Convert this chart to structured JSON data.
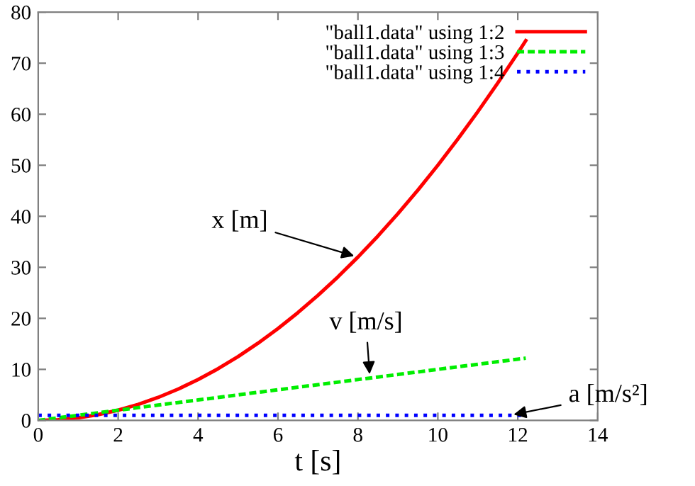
{
  "chart_data": {
    "type": "line",
    "xlabel": "t [s]",
    "xlim": [
      0,
      14
    ],
    "ylim": [
      0,
      80
    ],
    "xticks": [
      0,
      2,
      4,
      6,
      8,
      10,
      12,
      14
    ],
    "yticks": [
      0,
      10,
      20,
      30,
      40,
      50,
      60,
      70,
      80
    ],
    "grid": false,
    "legend": "top right",
    "x": [
      0,
      0.5,
      1,
      1.5,
      2,
      2.5,
      3,
      3.5,
      4,
      4.5,
      5,
      5.5,
      6,
      6.5,
      7,
      7.5,
      8,
      8.5,
      9,
      9.5,
      10,
      10.5,
      11,
      11.5,
      12,
      12.2
    ],
    "series": [
      {
        "name": "\"ball1.data\" using 1:2",
        "color": "#ff0000",
        "line_style": "solid",
        "values": [
          0,
          0.125,
          0.5,
          1.125,
          2,
          3.125,
          4.5,
          6.125,
          8,
          10.125,
          12.5,
          15.125,
          18,
          21.125,
          24.5,
          28.125,
          32,
          36.125,
          40.5,
          45.125,
          50,
          55.125,
          60.5,
          66.125,
          72,
          74.42
        ]
      },
      {
        "name": "\"ball1.data\" using 1:3",
        "color": "#00ee00",
        "line_style": "dashed",
        "values": [
          0,
          0.5,
          1,
          1.5,
          2,
          2.5,
          3,
          3.5,
          4,
          4.5,
          5,
          5.5,
          6,
          6.5,
          7,
          7.5,
          8,
          8.5,
          9,
          9.5,
          10,
          10.5,
          11,
          11.5,
          12,
          12.2
        ]
      },
      {
        "name": "\"ball1.data\" using 1:4",
        "color": "#0000ff",
        "line_style": "dotted",
        "values": [
          1,
          1,
          1,
          1,
          1,
          1,
          1,
          1,
          1,
          1,
          1,
          1,
          1,
          1,
          1,
          1,
          1,
          1,
          1,
          1,
          1,
          1,
          1,
          1,
          1,
          1
        ]
      }
    ],
    "annotations": [
      {
        "text": "x [m]",
        "x": 8,
        "y": 32
      },
      {
        "text": "v [m/s]",
        "x": 8.3,
        "y": 8.3
      },
      {
        "text": "a [m/s²]",
        "x": 11.8,
        "y": 1
      }
    ]
  }
}
